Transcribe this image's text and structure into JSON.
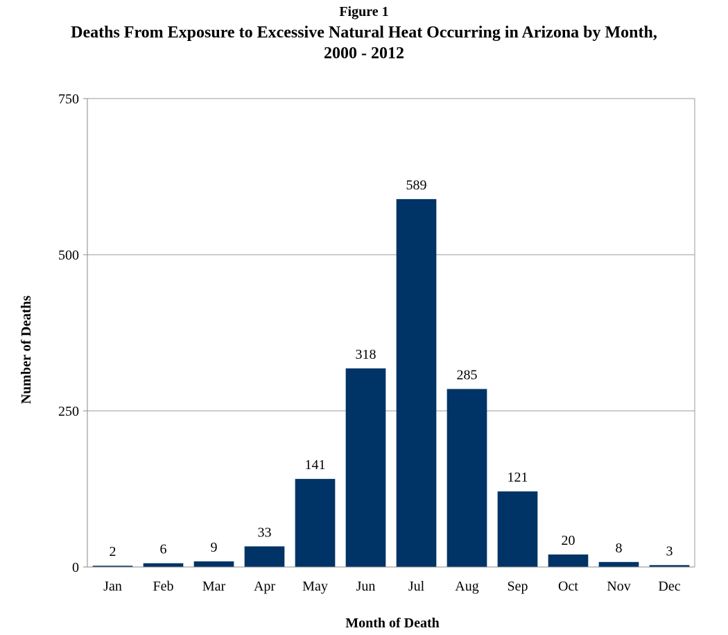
{
  "figure_label": "Figure 1",
  "title_line1": "Deaths From Exposure to Excessive Natural Heat Occurring in Arizona by Month,",
  "title_line2": "2000 - 2012",
  "chart_data": {
    "type": "bar",
    "title": "Deaths From Exposure to Excessive Natural Heat Occurring in Arizona by Month, 2000 - 2012",
    "xlabel": "Month of Death",
    "ylabel": "Number of Deaths",
    "categories": [
      "Jan",
      "Feb",
      "Mar",
      "Apr",
      "May",
      "Jun",
      "Jul",
      "Aug",
      "Sep",
      "Oct",
      "Nov",
      "Dec"
    ],
    "values": [
      2,
      6,
      9,
      33,
      141,
      318,
      589,
      285,
      121,
      20,
      8,
      3
    ],
    "ylim": [
      0,
      750
    ],
    "yticks": [
      0,
      250,
      500,
      750
    ],
    "grid": true,
    "legend": "none",
    "bar_color": "#003366"
  }
}
